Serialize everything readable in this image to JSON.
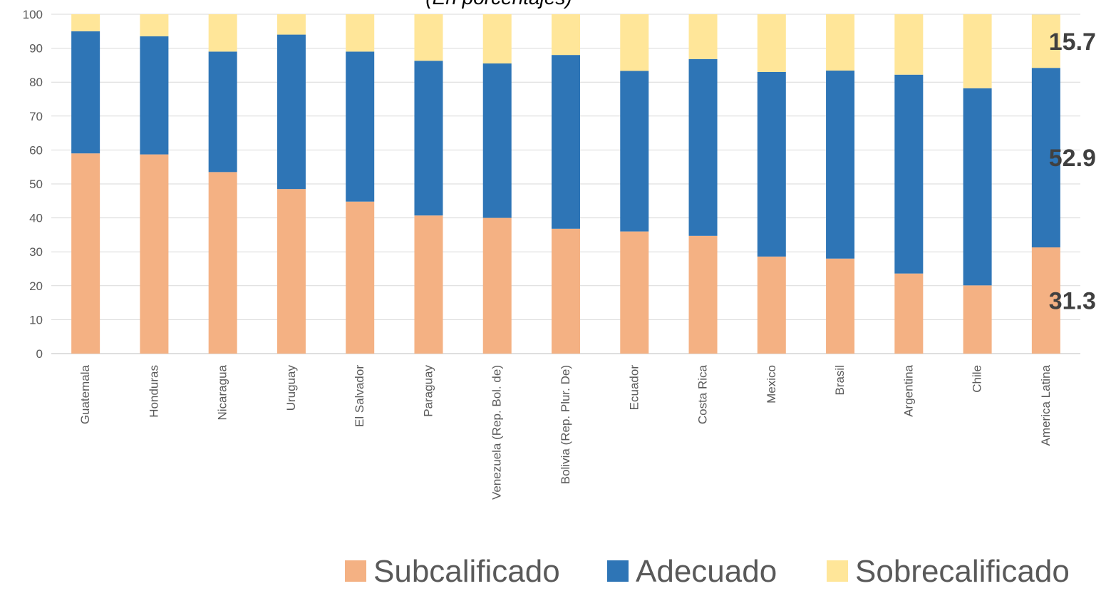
{
  "chart_data": {
    "type": "stacked_bar",
    "subtitle": "(En porcentajes)",
    "categories": [
      "Guatemala",
      "Honduras",
      "Nicaragua",
      "Uruguay",
      "El Salvador",
      "Paraguay",
      "Venezuela (Rep. Bol. de)",
      "Bolivia (Rep. Plur. De)",
      "Ecuador",
      "Costa Rica",
      "Mexico",
      "Brasil",
      "Argentina",
      "Chile",
      "America Latina"
    ],
    "series": [
      {
        "name": "Subcalificado",
        "color": "#f4b183",
        "values": [
          59,
          58.7,
          53.5,
          48.5,
          44.8,
          40.7,
          40,
          36.8,
          36,
          34.7,
          28.6,
          28,
          23.6,
          20.1,
          31.3
        ],
        "value_labels": [
          null,
          null,
          null,
          null,
          null,
          null,
          null,
          null,
          null,
          null,
          null,
          null,
          null,
          null,
          "31.3"
        ]
      },
      {
        "name": "Adecuado",
        "color": "#2e75b6",
        "values": [
          36,
          34.8,
          35.5,
          45.5,
          44.2,
          45.6,
          45.5,
          51.2,
          47.3,
          52.1,
          54.4,
          55.4,
          58.6,
          58.1,
          52.9
        ],
        "value_labels": [
          null,
          null,
          null,
          null,
          null,
          null,
          null,
          null,
          null,
          null,
          null,
          null,
          null,
          null,
          "52.9"
        ]
      },
      {
        "name": "Sobrecalificado",
        "color": "#ffe699",
        "values": [
          5,
          6.5,
          11,
          6,
          11,
          13.7,
          14.5,
          12,
          16.7,
          13.2,
          17,
          16.6,
          17.8,
          21.8,
          15.7
        ],
        "value_labels": [
          null,
          null,
          null,
          null,
          null,
          null,
          null,
          null,
          null,
          null,
          null,
          null,
          null,
          null,
          "15.7"
        ]
      }
    ],
    "ylim": [
      0,
      100
    ],
    "yticks": [
      0,
      10,
      20,
      30,
      40,
      50,
      60,
      70,
      80,
      90,
      100
    ],
    "grid": true,
    "legend": "bottom"
  }
}
